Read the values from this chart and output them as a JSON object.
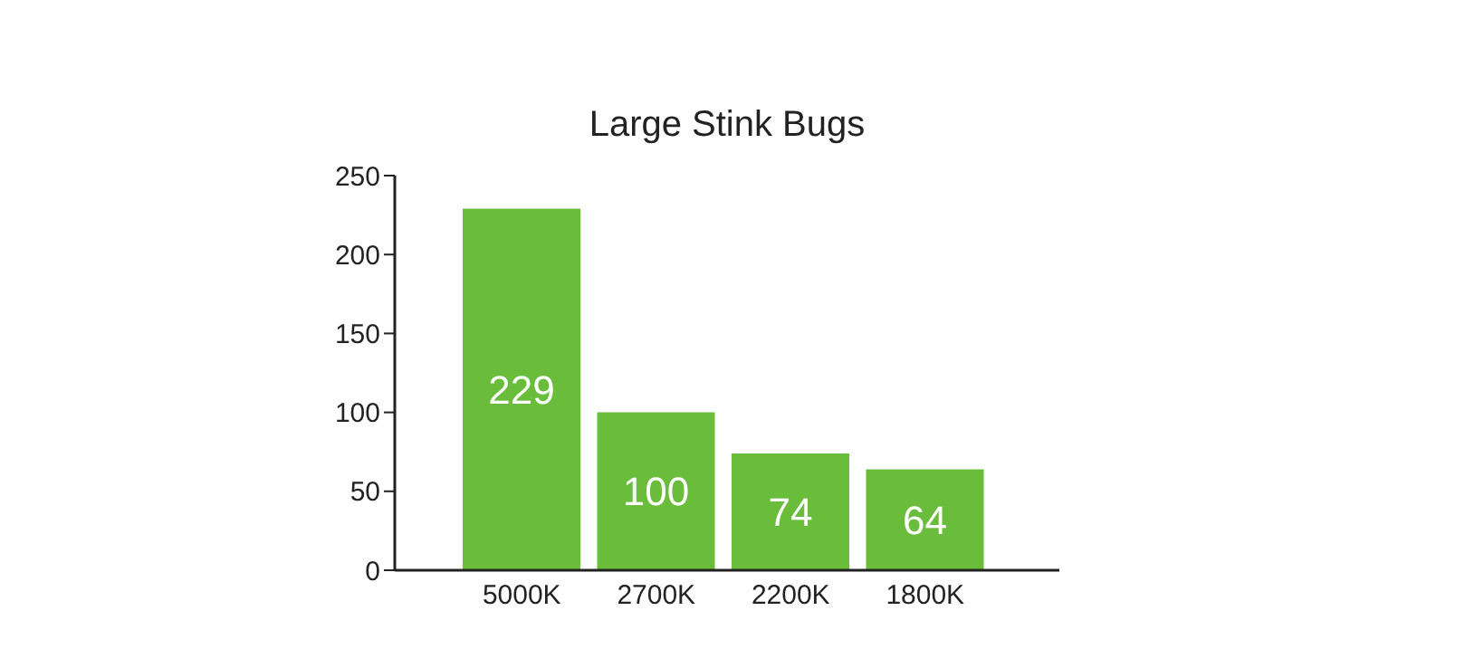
{
  "chart_data": {
    "type": "bar",
    "title": "Large Stink Bugs",
    "categories": [
      "5000K",
      "2700K",
      "2200K",
      "1800K"
    ],
    "values": [
      229,
      100,
      74,
      64
    ],
    "color": "#6abd3b",
    "ylim": [
      0,
      250
    ],
    "yticks": [
      0,
      50,
      100,
      150,
      200,
      250
    ],
    "grid": false,
    "data_labels": true
  }
}
